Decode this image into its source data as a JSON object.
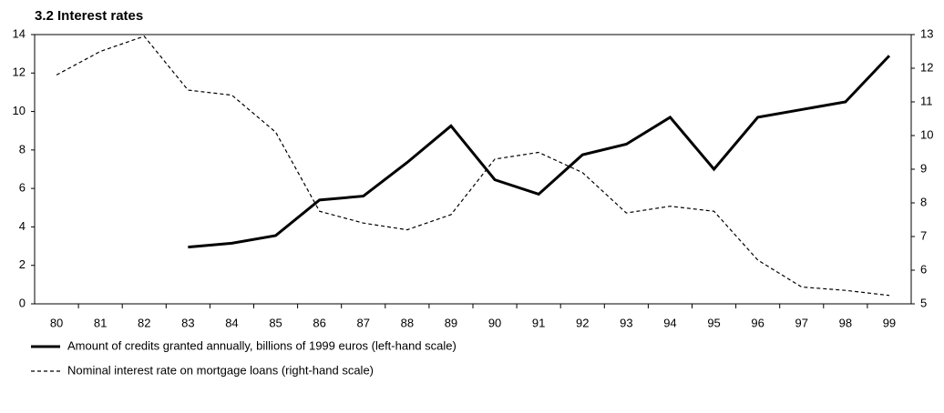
{
  "chart_data": {
    "type": "line",
    "title": "3.2 Interest rates",
    "categories": [
      "80",
      "81",
      "82",
      "83",
      "84",
      "85",
      "86",
      "87",
      "88",
      "89",
      "90",
      "91",
      "92",
      "93",
      "94",
      "95",
      "96",
      "97",
      "98",
      "99"
    ],
    "ylim": [
      0,
      14
    ],
    "yticks": [
      0,
      2,
      4,
      6,
      8,
      10,
      12,
      14
    ],
    "y2lim": [
      5,
      13
    ],
    "y2ticks": [
      5,
      6,
      7,
      8,
      9,
      10,
      11,
      12,
      13
    ],
    "series": [
      {
        "name": "Amount of credits granted annually, billions of 1999 euros (left-hand scale)",
        "color": "#000000",
        "style": "solid",
        "values": [
          null,
          null,
          null,
          2.95,
          3.15,
          3.55,
          5.4,
          5.6,
          7.35,
          9.25,
          6.45,
          5.7,
          7.75,
          8.3,
          9.7,
          7.0,
          9.7,
          10.1,
          10.5,
          12.9
        ]
      },
      {
        "name": "Nominal interest rate on mortgage loans (right-hand scale)",
        "color": "#000000",
        "style": "dashed",
        "axis": "y2",
        "values": [
          11.8,
          12.5,
          12.95,
          11.35,
          11.2,
          10.1,
          7.75,
          7.4,
          7.2,
          7.65,
          9.3,
          9.5,
          8.9,
          7.7,
          7.9,
          7.75,
          6.3,
          5.5,
          5.4,
          5.25
        ]
      }
    ]
  }
}
